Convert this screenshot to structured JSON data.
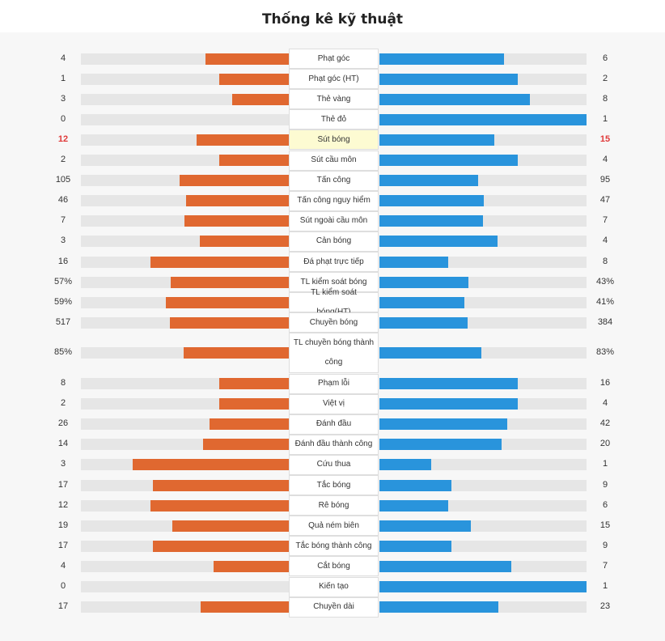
{
  "title": "Thống kê kỹ thuật",
  "colors": {
    "home": "#e06830",
    "away": "#2994dc",
    "track": "#e6e6e6",
    "highlight": "#e03b3b"
  },
  "stats": [
    {
      "label": "Phạt góc",
      "home": "4",
      "away": "6",
      "home_n": 4,
      "away_n": 6
    },
    {
      "label": "Phạt góc (HT)",
      "home": "1",
      "away": "2",
      "home_n": 1,
      "away_n": 2
    },
    {
      "label": "Thẻ vàng",
      "home": "3",
      "away": "8",
      "home_n": 3,
      "away_n": 8
    },
    {
      "label": "Thẻ đỏ",
      "home": "0",
      "away": "1",
      "home_n": 0,
      "away_n": 1
    },
    {
      "label": "Sút bóng",
      "home": "12",
      "away": "15",
      "home_n": 12,
      "away_n": 15,
      "highlight": true
    },
    {
      "label": "Sút cầu môn",
      "home": "2",
      "away": "4",
      "home_n": 2,
      "away_n": 4
    },
    {
      "label": "Tấn công",
      "home": "105",
      "away": "95",
      "home_n": 105,
      "away_n": 95
    },
    {
      "label": "Tấn công nguy hiểm",
      "home": "46",
      "away": "47",
      "home_n": 46,
      "away_n": 47
    },
    {
      "label": "Sút ngoài cầu môn",
      "home": "7",
      "away": "7",
      "home_n": 7,
      "away_n": 7
    },
    {
      "label": "Cản bóng",
      "home": "3",
      "away": "4",
      "home_n": 3,
      "away_n": 4
    },
    {
      "label": "Đá phạt trực tiếp",
      "home": "16",
      "away": "8",
      "home_n": 16,
      "away_n": 8
    },
    {
      "label": "TL kiểm soát bóng",
      "home": "57%",
      "away": "43%",
      "home_n": 57,
      "away_n": 43
    },
    {
      "label": "TL kiểm soát bóng(HT)",
      "home": "59%",
      "away": "41%",
      "home_n": 59,
      "away_n": 41
    },
    {
      "label": "Chuyền bóng",
      "home": "517",
      "away": "384",
      "home_n": 517,
      "away_n": 384
    },
    {
      "label": "TL chuyền bóng thành công",
      "home": "85%",
      "away": "83%",
      "home_n": 85,
      "away_n": 83,
      "tall": true
    },
    {
      "label": "Phạm lỗi",
      "home": "8",
      "away": "16",
      "home_n": 8,
      "away_n": 16
    },
    {
      "label": "Việt vị",
      "home": "2",
      "away": "4",
      "home_n": 2,
      "away_n": 4
    },
    {
      "label": "Đánh đầu",
      "home": "26",
      "away": "42",
      "home_n": 26,
      "away_n": 42
    },
    {
      "label": "Đánh đầu thành công",
      "home": "14",
      "away": "20",
      "home_n": 14,
      "away_n": 20
    },
    {
      "label": "Cứu thua",
      "home": "3",
      "away": "1",
      "home_n": 3,
      "away_n": 1
    },
    {
      "label": "Tắc bóng",
      "home": "17",
      "away": "9",
      "home_n": 17,
      "away_n": 9
    },
    {
      "label": "Rê bóng",
      "home": "12",
      "away": "6",
      "home_n": 12,
      "away_n": 6
    },
    {
      "label": "Quả ném biên",
      "home": "19",
      "away": "15",
      "home_n": 19,
      "away_n": 15
    },
    {
      "label": "Tắc bóng thành công",
      "home": "17",
      "away": "9",
      "home_n": 17,
      "away_n": 9
    },
    {
      "label": "Cắt bóng",
      "home": "4",
      "away": "7",
      "home_n": 4,
      "away_n": 7
    },
    {
      "label": "Kiến tạo",
      "home": "0",
      "away": "1",
      "home_n": 0,
      "away_n": 1
    },
    {
      "label": "Chuyền dài",
      "home": "17",
      "away": "23",
      "home_n": 17,
      "away_n": 23
    }
  ]
}
